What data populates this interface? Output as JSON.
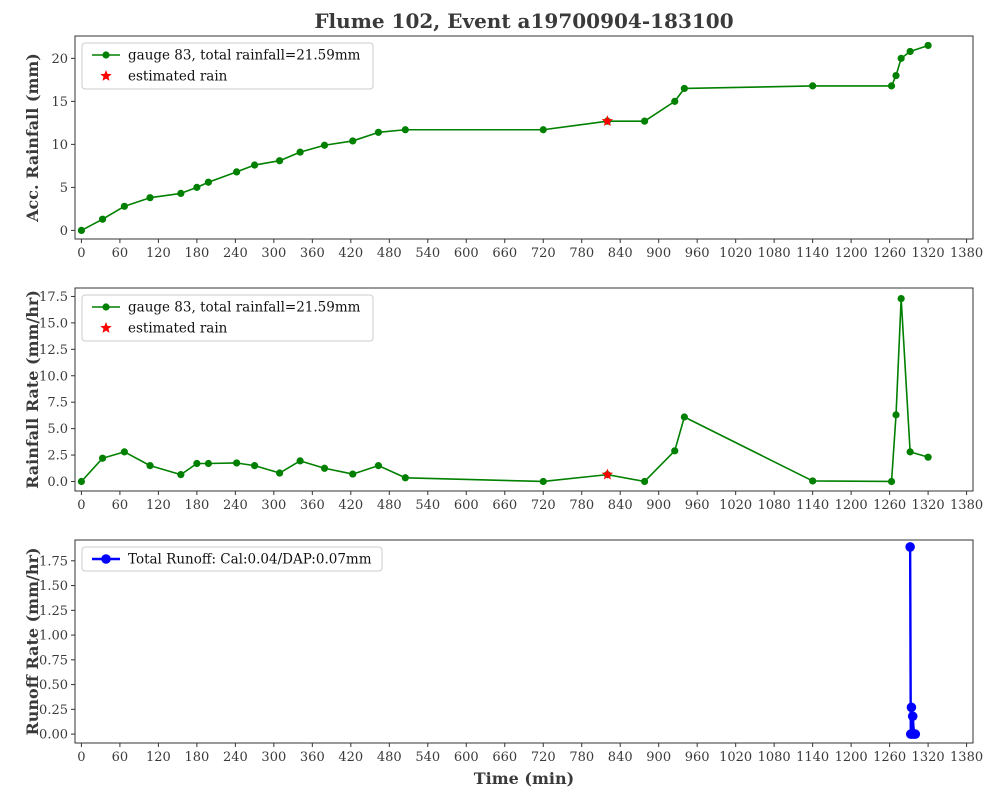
{
  "title": "Flume 102, Event a19700904-183100",
  "colors": {
    "rain": "#008000",
    "estimated": "#ff0000",
    "runoff": "#0000ff",
    "axis": "#333333"
  },
  "chart_data": [
    {
      "type": "line",
      "ylabel": "Acc. Rainfall (mm)",
      "xlabel": "",
      "xlim": [
        -10,
        1390
      ],
      "ylim": [
        -1,
        22.6
      ],
      "xticks": [
        0,
        60,
        120,
        180,
        240,
        300,
        360,
        420,
        480,
        540,
        600,
        660,
        720,
        780,
        840,
        900,
        960,
        1020,
        1080,
        1140,
        1200,
        1260,
        1320,
        1380
      ],
      "yticks": [
        0,
        5,
        10,
        15,
        20
      ],
      "ytick_labels": [
        "0",
        "5",
        "10",
        "15",
        "20"
      ],
      "legend_position": "upper-left",
      "series": [
        {
          "name": "gauge 83, total rainfall=21.59mm",
          "marker": "circle",
          "color": "#008000",
          "x": [
            0,
            33,
            67,
            107,
            155,
            180,
            198,
            242,
            270,
            309,
            341,
            379,
            423,
            463,
            505,
            720,
            820,
            878,
            925,
            940,
            1140,
            1263,
            1270,
            1278,
            1292,
            1320
          ],
          "y": [
            0,
            1.3,
            2.8,
            3.8,
            4.3,
            5.0,
            5.6,
            6.8,
            7.6,
            8.1,
            9.1,
            9.9,
            10.4,
            11.4,
            11.7,
            11.7,
            12.7,
            12.7,
            15.0,
            16.5,
            16.8,
            16.8,
            18.0,
            20.0,
            20.8,
            21.5
          ]
        },
        {
          "name": "estimated rain",
          "marker": "star",
          "color": "#ff0000",
          "line": false,
          "x": [
            820
          ],
          "y": [
            12.7
          ]
        }
      ]
    },
    {
      "type": "line",
      "ylabel": "Rainfall Rate (mm/hr)",
      "xlabel": "",
      "xlim": [
        -10,
        1390
      ],
      "ylim": [
        -0.9,
        18.3
      ],
      "xticks": [
        0,
        60,
        120,
        180,
        240,
        300,
        360,
        420,
        480,
        540,
        600,
        660,
        720,
        780,
        840,
        900,
        960,
        1020,
        1080,
        1140,
        1200,
        1260,
        1320,
        1380
      ],
      "yticks": [
        0,
        2.5,
        5,
        7.5,
        10,
        12.5,
        15,
        17.5
      ],
      "ytick_labels": [
        "0.0",
        "2.5",
        "5.0",
        "7.5",
        "10.0",
        "12.5",
        "15.0",
        "17.5"
      ],
      "legend_position": "upper-left",
      "series": [
        {
          "name": "gauge 83, total rainfall=21.59mm",
          "marker": "circle",
          "color": "#008000",
          "x": [
            0,
            33,
            67,
            107,
            155,
            180,
            198,
            242,
            270,
            309,
            341,
            379,
            423,
            463,
            505,
            720,
            820,
            878,
            925,
            940,
            1140,
            1263,
            1270,
            1278,
            1292,
            1320
          ],
          "y": [
            0,
            2.2,
            2.8,
            1.5,
            0.65,
            1.7,
            1.7,
            1.75,
            1.5,
            0.8,
            1.95,
            1.25,
            0.7,
            1.5,
            0.35,
            0,
            0.65,
            0,
            2.9,
            6.1,
            0.05,
            0,
            6.3,
            17.3,
            2.8,
            2.3
          ]
        },
        {
          "name": "estimated rain",
          "marker": "star",
          "color": "#ff0000",
          "line": false,
          "x": [
            820
          ],
          "y": [
            0.65
          ]
        }
      ]
    },
    {
      "type": "line",
      "ylabel": "Runoff Rate (mm/hr)",
      "xlabel": "Time (min)",
      "xlim": [
        -10,
        1390
      ],
      "ylim": [
        -0.09,
        1.96
      ],
      "xticks": [
        0,
        60,
        120,
        180,
        240,
        300,
        360,
        420,
        480,
        540,
        600,
        660,
        720,
        780,
        840,
        900,
        960,
        1020,
        1080,
        1140,
        1200,
        1260,
        1320,
        1380
      ],
      "yticks": [
        0,
        0.25,
        0.5,
        0.75,
        1.0,
        1.25,
        1.5,
        1.75
      ],
      "ytick_labels": [
        "0.00",
        "0.25",
        "0.50",
        "0.75",
        "1.00",
        "1.25",
        "1.50",
        "1.75"
      ],
      "legend_position": "upper-left",
      "series": [
        {
          "name": "Total Runoff: Cal:0.04/DAP:0.07mm",
          "marker": "circle",
          "color": "#0000ff",
          "x": [
            1292,
            1293,
            1294,
            1295,
            1296,
            1298,
            1300
          ],
          "y": [
            1.89,
            0.0,
            0.27,
            0.0,
            0.18,
            0.0,
            0.0
          ]
        }
      ]
    }
  ]
}
